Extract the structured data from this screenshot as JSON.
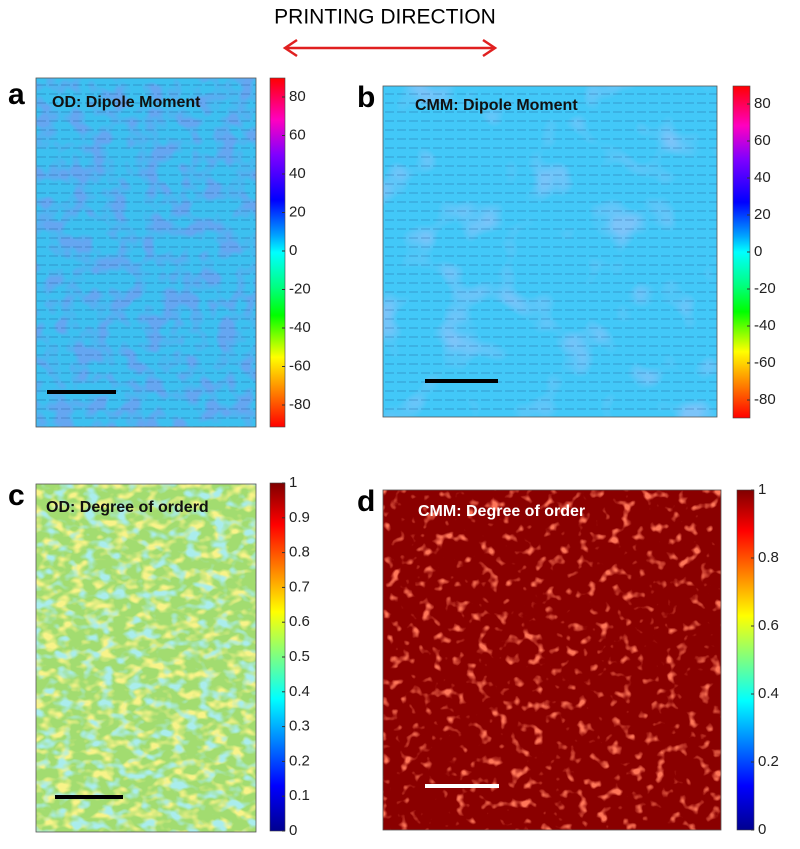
{
  "header": {
    "title": "PRINTING DIRECTION"
  },
  "panels": [
    {
      "letter": "a",
      "label": "OD: Dipole Moment",
      "colorbar_ticks": [
        "80",
        "60",
        "40",
        "20",
        "0",
        "-20",
        "-40",
        "-60",
        "-80"
      ]
    },
    {
      "letter": "b",
      "label": "CMM: Dipole Moment",
      "colorbar_ticks": [
        "80",
        "60",
        "40",
        "20",
        "0",
        "-20",
        "-40",
        "-60",
        "-80"
      ]
    },
    {
      "letter": "c",
      "label": "OD: Degree of orderd",
      "colorbar_ticks": [
        "1",
        "0.9",
        "0.8",
        "0.7",
        "0.6",
        "0.5",
        "0.4",
        "0.3",
        "0.2",
        "0.1",
        "0"
      ]
    },
    {
      "letter": "d",
      "label": "CMM: Degree of order",
      "colorbar_ticks": [
        "1",
        "0.8",
        "0.6",
        "0.4",
        "0.2",
        "0"
      ]
    }
  ]
}
